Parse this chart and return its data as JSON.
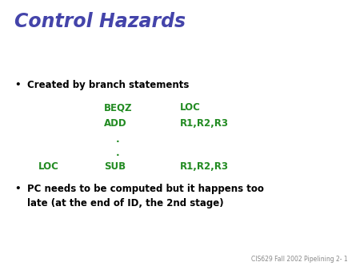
{
  "title": "Control Hazards",
  "title_color": "#4444aa",
  "title_style": "italic",
  "title_fontsize": 17,
  "background_color": "#ffffff",
  "bullet1": "Created by branch statements",
  "bullet1_color": "#000000",
  "bullet1_fontsize": 8.5,
  "code_color": "#228B22",
  "code_fontsize": 8.5,
  "bullet2_line1": "PC needs to be computed but it happens too",
  "bullet2_line2": "late (at the end of ID, the 2nd stage)",
  "bullet2_color": "#000000",
  "bullet2_fontsize": 8.5,
  "footer": "CIS629 Fall 2002 Pipelining 2- 1",
  "footer_color": "#888888",
  "footer_fontsize": 5.5
}
